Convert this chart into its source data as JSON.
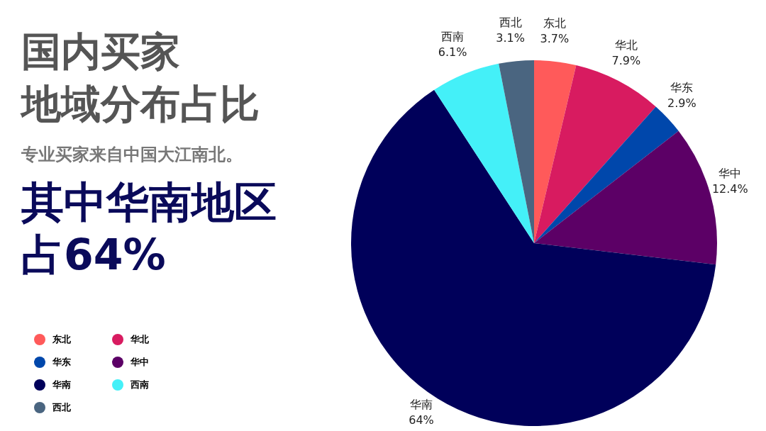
{
  "chart_data": {
    "type": "pie",
    "title": "国内买家地域分布占比",
    "subtitle": "专业买家来自中国大江南北。",
    "annotations": [
      "其中华南地区占64%"
    ],
    "categories": [
      "东北",
      "华北",
      "华东",
      "华中",
      "华南",
      "西南",
      "西北"
    ],
    "values": [
      3.7,
      7.9,
      2.9,
      12.4,
      64,
      6.1,
      3.1
    ],
    "value_labels": [
      "3.7%",
      "7.9%",
      "2.9%",
      "12.4%",
      "64%",
      "6.1%",
      "3.1%"
    ],
    "colors": [
      "#ff5a5a",
      "#d81b60",
      "#0047ab",
      "#5c0066",
      "#00005a",
      "#44f0f8",
      "#4a6580"
    ],
    "legend": "bottom left"
  }
}
